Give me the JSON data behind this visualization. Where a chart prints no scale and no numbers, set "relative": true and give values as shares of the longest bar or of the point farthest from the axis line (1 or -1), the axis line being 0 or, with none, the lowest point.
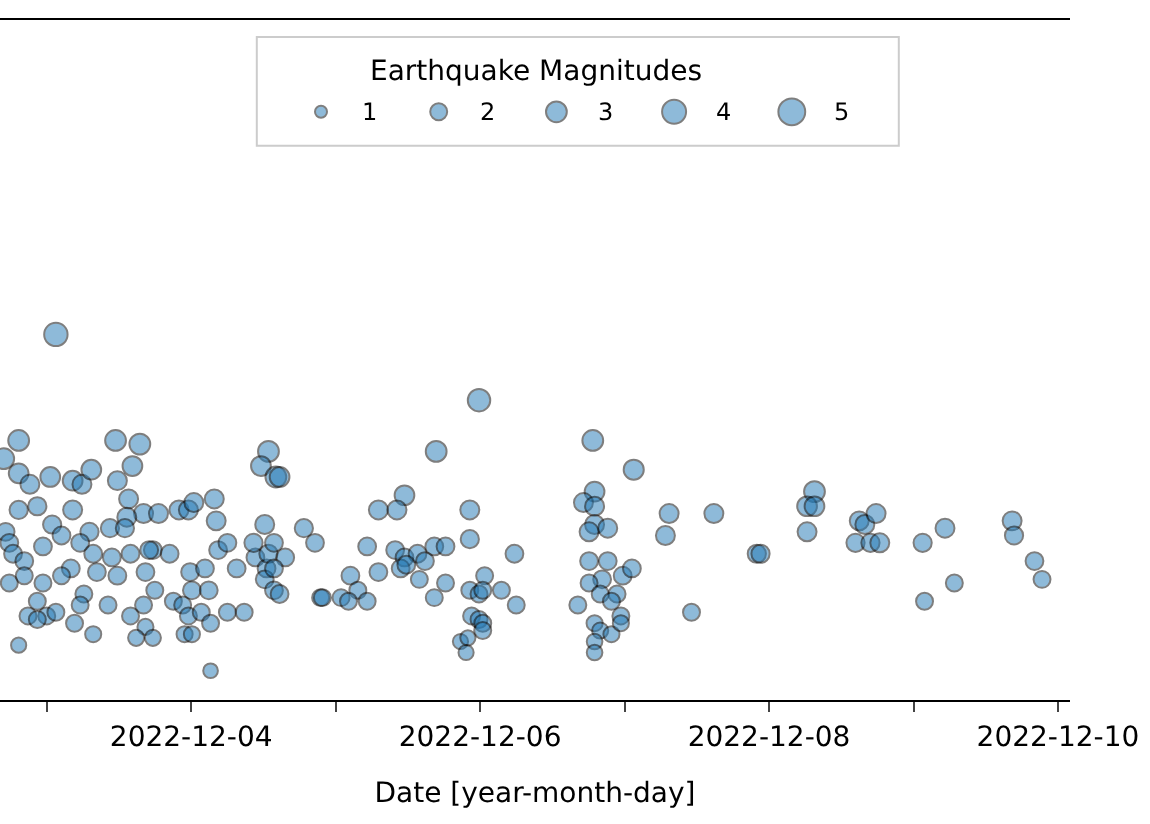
{
  "chart_data": {
    "type": "bubble",
    "xlabel": "Date [year-month-day]",
    "legend_title": "Earthquake Magnitudes",
    "grid": false,
    "marker": "circle",
    "relative": true,
    "tick_labels": "x",
    "xlim": [
      "2022-12-02T16:14",
      "2022-12-10T02:00"
    ],
    "xticks": [
      {
        "value": "2022-12-03",
        "label": null
      },
      "2022-12-04",
      {
        "value": "2022-12-05",
        "label": null
      },
      "2022-12-06",
      {
        "value": "2022-12-07",
        "label": null
      },
      "2022-12-08",
      {
        "value": "2022-12-09",
        "label": null
      },
      "2022-12-10"
    ],
    "size_legend": [
      1,
      2,
      3,
      4,
      5
    ],
    "series": [
      {
        "color": "#1f77b4",
        "x": [
          "2022-12-03T01:31",
          "2022-12-02T19:20",
          "2022-12-02T16:51",
          "2022-12-03T11:26",
          "2022-12-03T15:28",
          "2022-12-02T19:20",
          "2022-12-02T21:12",
          "2022-12-03T00:35",
          "2022-12-03T04:18",
          "2022-12-03T05:51",
          "2022-12-03T07:24",
          "2022-12-03T14:14",
          "2022-12-03T11:44",
          "2022-12-03T13:36",
          "2022-12-03T16:05",
          "2022-12-03T18:34",
          "2022-12-03T21:58",
          "2022-12-03T23:32",
          "2022-12-04T00:26",
          "2022-12-04T03:50",
          "2022-12-04T04:09",
          "2022-12-04T12:50",
          "2022-12-04T11:35",
          "2022-12-04T14:04",
          "2022-12-04T14:41",
          "2022-12-02T19:20",
          "2022-12-02T22:26",
          "2022-12-03T04:18",
          "2022-12-03T00:54",
          "2022-12-03T07:06",
          "2022-12-03T10:30",
          "2022-12-03T13:18",
          "2022-12-03T12:59",
          "2022-12-03T17:38",
          "2022-12-02T17:10",
          "2022-12-02T17:47",
          "2022-12-02T18:24",
          "2022-12-02T20:16",
          "2022-12-02T23:22",
          "2022-12-03T02:27",
          "2022-12-03T05:33",
          "2022-12-03T07:43",
          "2022-12-03T04:00",
          "2022-12-03T08:20",
          "2022-12-03T10:49",
          "2022-12-03T13:55",
          "2022-12-03T16:24",
          "2022-12-03T11:44",
          "2022-12-03T17:01",
          "2022-12-03T20:25",
          "2022-12-03T23:49",
          "2022-12-04T02:17",
          "2022-12-04T04:28",
          "2022-12-04T06:01",
          "2022-12-04T00:07",
          "2022-12-04T02:55",
          "2022-12-04T07:33",
          "2022-12-04T10:40",
          "2022-12-04T12:31",
          "2022-12-04T12:13",
          "2022-12-04T13:45",
          "2022-12-04T10:21",
          "2022-12-04T12:13",
          "2022-12-04T12:50",
          "2022-12-02T17:47",
          "2022-12-02T20:16",
          "2022-12-02T23:22",
          "2022-12-03T02:27",
          "2022-12-03T06:10",
          "2022-12-02T22:26",
          "2022-12-02T20:53",
          "2022-12-03T00:00",
          "2022-12-03T01:31",
          "2022-12-03T05:33",
          "2022-12-03T10:11",
          "2022-12-03T13:55",
          "2022-12-03T16:05",
          "2022-12-03T17:57",
          "2022-12-03T21:02",
          "2022-12-03T22:35",
          "2022-12-03T23:32",
          "2022-12-04T01:40",
          "2022-12-04T03:13",
          "2022-12-04T06:01",
          "2022-12-04T08:48",
          "2022-12-03T07:43",
          "2022-12-03T16:24",
          "2022-12-03T14:51",
          "2022-12-03T17:38",
          "2022-12-03T22:54",
          "2022-12-04T00:07",
          "2022-12-02T19:20",
          "2022-12-04T03:13",
          "2022-12-03T04:37",
          "2022-12-02T22:26",
          "2022-12-05T23:49",
          "2022-12-05T16:42",
          "2022-12-05T11:26",
          "2022-12-05T07:06",
          "2022-12-05T10:11",
          "2022-12-04T18:43",
          "2022-12-04T20:34",
          "2022-12-04T13:45",
          "2022-12-04T15:37",
          "2022-12-04T13:45",
          "2022-12-04T14:41",
          "2022-12-05T05:14",
          "2022-12-05T07:06",
          "2022-12-05T02:27",
          "2022-12-05T03:41",
          "2022-12-05T00:54",
          "2022-12-05T02:08",
          "2022-12-05T05:14",
          "2022-12-04T21:30",
          "2022-12-04T21:48",
          "2022-12-05T09:53",
          "2022-12-05T11:26",
          "2022-12-05T13:36",
          "2022-12-05T10:48",
          "2022-12-05T11:44",
          "2022-12-05T14:50",
          "2022-12-05T16:23",
          "2022-12-05T18:15",
          "2022-12-05T13:54",
          "2022-12-05T18:15",
          "2022-12-05T16:23",
          "2022-12-05T22:17",
          "2022-12-05T22:17",
          "2022-12-06T05:42",
          "2022-12-05T22:17",
          "2022-12-05T23:49",
          "2022-12-06T00:45",
          "2022-12-06T00:26",
          "2022-12-06T03:32",
          "2022-12-06T06:00",
          "2022-12-05T22:35",
          "2022-12-05T23:49",
          "2022-12-06T00:26",
          "2022-12-06T00:26",
          "2022-12-05T20:44",
          "2022-12-05T21:58",
          "2022-12-05T21:40",
          "2022-12-06T18:43",
          "2022-12-07T01:31",
          "2022-12-06T19:01",
          "2022-12-06T17:10",
          "2022-12-06T19:01",
          "2022-12-06T19:01",
          "2022-12-06T18:06",
          "2022-12-06T21:12",
          "2022-12-07T07:24",
          "2022-12-07T06:47",
          "2022-12-07T14:50",
          "2022-12-07T21:58",
          "2022-12-07T22:35",
          "2022-12-06T18:06",
          "2022-12-06T21:12",
          "2022-12-06T20:16",
          "2022-12-06T23:41",
          "2022-12-07T01:13",
          "2022-12-06T18:06",
          "2022-12-06T19:57",
          "2022-12-06T22:45",
          "2022-12-06T21:49",
          "2022-12-06T16:14",
          "2022-12-06T23:23",
          "2022-12-07T11:07",
          "2022-12-06T19:01",
          "2022-12-06T19:57",
          "2022-12-06T21:49",
          "2022-12-06T23:23",
          "2022-12-06T19:01",
          "2022-12-06T19:01",
          "2022-12-08T07:33",
          "2022-12-08T06:19",
          "2022-12-08T07:33",
          "2022-12-08T06:19",
          "2022-12-08T14:59",
          "2022-12-08T15:55",
          "2022-12-08T17:47",
          "2022-12-08T14:22",
          "2022-12-08T16:51",
          "2022-12-08T18:24",
          "2022-12-09T01:31",
          "2022-12-09T05:14",
          "2022-12-09T01:50",
          "2022-12-09T06:47",
          "2022-12-09T16:23",
          "2022-12-09T16:42",
          "2022-12-09T20:06",
          "2022-12-09T21:21"
        ],
        "values": [
          1.0,
          0.71,
          0.66,
          0.71,
          0.7,
          0.62,
          0.59,
          0.61,
          0.6,
          0.59,
          0.63,
          0.64,
          0.6,
          0.55,
          0.51,
          0.51,
          0.52,
          0.52,
          0.54,
          0.55,
          0.49,
          0.68,
          0.64,
          0.61,
          0.61,
          0.52,
          0.53,
          0.52,
          0.48,
          0.46,
          0.47,
          0.5,
          0.47,
          0.41,
          0.46,
          0.43,
          0.4,
          0.38,
          0.42,
          0.45,
          0.43,
          0.4,
          0.36,
          0.35,
          0.39,
          0.4,
          0.35,
          0.34,
          0.41,
          0.4,
          0.35,
          0.36,
          0.41,
          0.43,
          0.3,
          0.3,
          0.36,
          0.39,
          0.36,
          0.33,
          0.3,
          0.43,
          0.48,
          0.4,
          0.32,
          0.34,
          0.32,
          0.34,
          0.29,
          0.27,
          0.23,
          0.23,
          0.24,
          0.26,
          0.26,
          0.23,
          0.26,
          0.3,
          0.27,
          0.26,
          0.23,
          0.24,
          0.21,
          0.24,
          0.24,
          0.18,
          0.2,
          0.17,
          0.17,
          0.18,
          0.18,
          0.15,
          0.08,
          0.21,
          0.22,
          0.82,
          0.68,
          0.56,
          0.52,
          0.52,
          0.47,
          0.43,
          0.43,
          0.39,
          0.36,
          0.29,
          0.42,
          0.35,
          0.34,
          0.3,
          0.28,
          0.27,
          0.27,
          0.28,
          0.28,
          0.41,
          0.39,
          0.4,
          0.36,
          0.37,
          0.38,
          0.42,
          0.42,
          0.33,
          0.32,
          0.28,
          0.52,
          0.44,
          0.4,
          0.3,
          0.29,
          0.34,
          0.3,
          0.3,
          0.26,
          0.23,
          0.22,
          0.21,
          0.19,
          0.16,
          0.17,
          0.13,
          0.71,
          0.63,
          0.57,
          0.54,
          0.53,
          0.48,
          0.46,
          0.47,
          0.51,
          0.45,
          0.51,
          0.4,
          0.4,
          0.38,
          0.38,
          0.33,
          0.34,
          0.36,
          0.32,
          0.29,
          0.29,
          0.27,
          0.26,
          0.23,
          0.24,
          0.21,
          0.19,
          0.18,
          0.21,
          0.16,
          0.13,
          0.57,
          0.53,
          0.53,
          0.46,
          0.49,
          0.48,
          0.51,
          0.43,
          0.43,
          0.43,
          0.43,
          0.47,
          0.27,
          0.32,
          0.49,
          0.45,
          0.38,
          0.33
        ],
        "sizes": [
          3.8,
          3,
          3,
          3,
          3,
          2.7,
          2.5,
          2.7,
          2.7,
          2.5,
          2.7,
          2.7,
          2.5,
          2.5,
          2.5,
          2.5,
          2.5,
          2.5,
          2.5,
          2.5,
          2.5,
          3,
          2.7,
          3,
          2.7,
          2.3,
          2.3,
          2.5,
          2.3,
          2.3,
          2.3,
          2.5,
          2.3,
          2.2,
          2.2,
          2.2,
          2.2,
          2.2,
          2.2,
          2.2,
          2.2,
          2.2,
          2.2,
          2.2,
          2.2,
          2.2,
          2.2,
          2.2,
          2.2,
          2.2,
          2.2,
          2.2,
          2.2,
          2.2,
          2.2,
          2.2,
          2.2,
          2.2,
          2.2,
          2.2,
          2.2,
          2.3,
          2.5,
          2.3,
          2,
          2,
          2,
          2,
          2,
          2,
          2,
          2,
          2,
          2,
          2,
          2,
          2,
          2,
          2,
          2,
          2,
          2,
          2,
          2,
          2,
          1.8,
          1.8,
          1.8,
          1.8,
          1.8,
          1.8,
          1.6,
          1.5,
          2,
          2,
          3.5,
          3,
          2.7,
          2.5,
          2.5,
          2.3,
          2.2,
          2.2,
          2.2,
          2.2,
          2.2,
          2.2,
          2.2,
          2.2,
          2,
          2,
          2,
          2,
          2,
          2,
          2.2,
          2.2,
          2.2,
          2.2,
          2.2,
          2.2,
          2.2,
          2.2,
          2,
          2,
          2,
          2.5,
          2.3,
          2.2,
          2,
          2,
          2,
          2,
          2,
          2,
          2,
          2,
          2,
          2,
          1.6,
          1.6,
          1.6,
          3,
          2.8,
          2.7,
          2.5,
          2.5,
          2.5,
          2.5,
          2.5,
          2.5,
          2.5,
          2.5,
          2.3,
          2.3,
          2.2,
          2.2,
          2.2,
          2.2,
          2.2,
          2,
          2,
          2,
          2,
          2,
          2,
          2,
          1.8,
          1.8,
          1.8,
          1.8,
          1.7,
          1.7,
          3,
          2.7,
          2.7,
          2.5,
          2.5,
          2.5,
          2.5,
          2.3,
          2.3,
          2.5,
          2.3,
          2.5,
          2,
          2,
          2.5,
          2.3,
          2.2,
          2
        ]
      }
    ]
  }
}
